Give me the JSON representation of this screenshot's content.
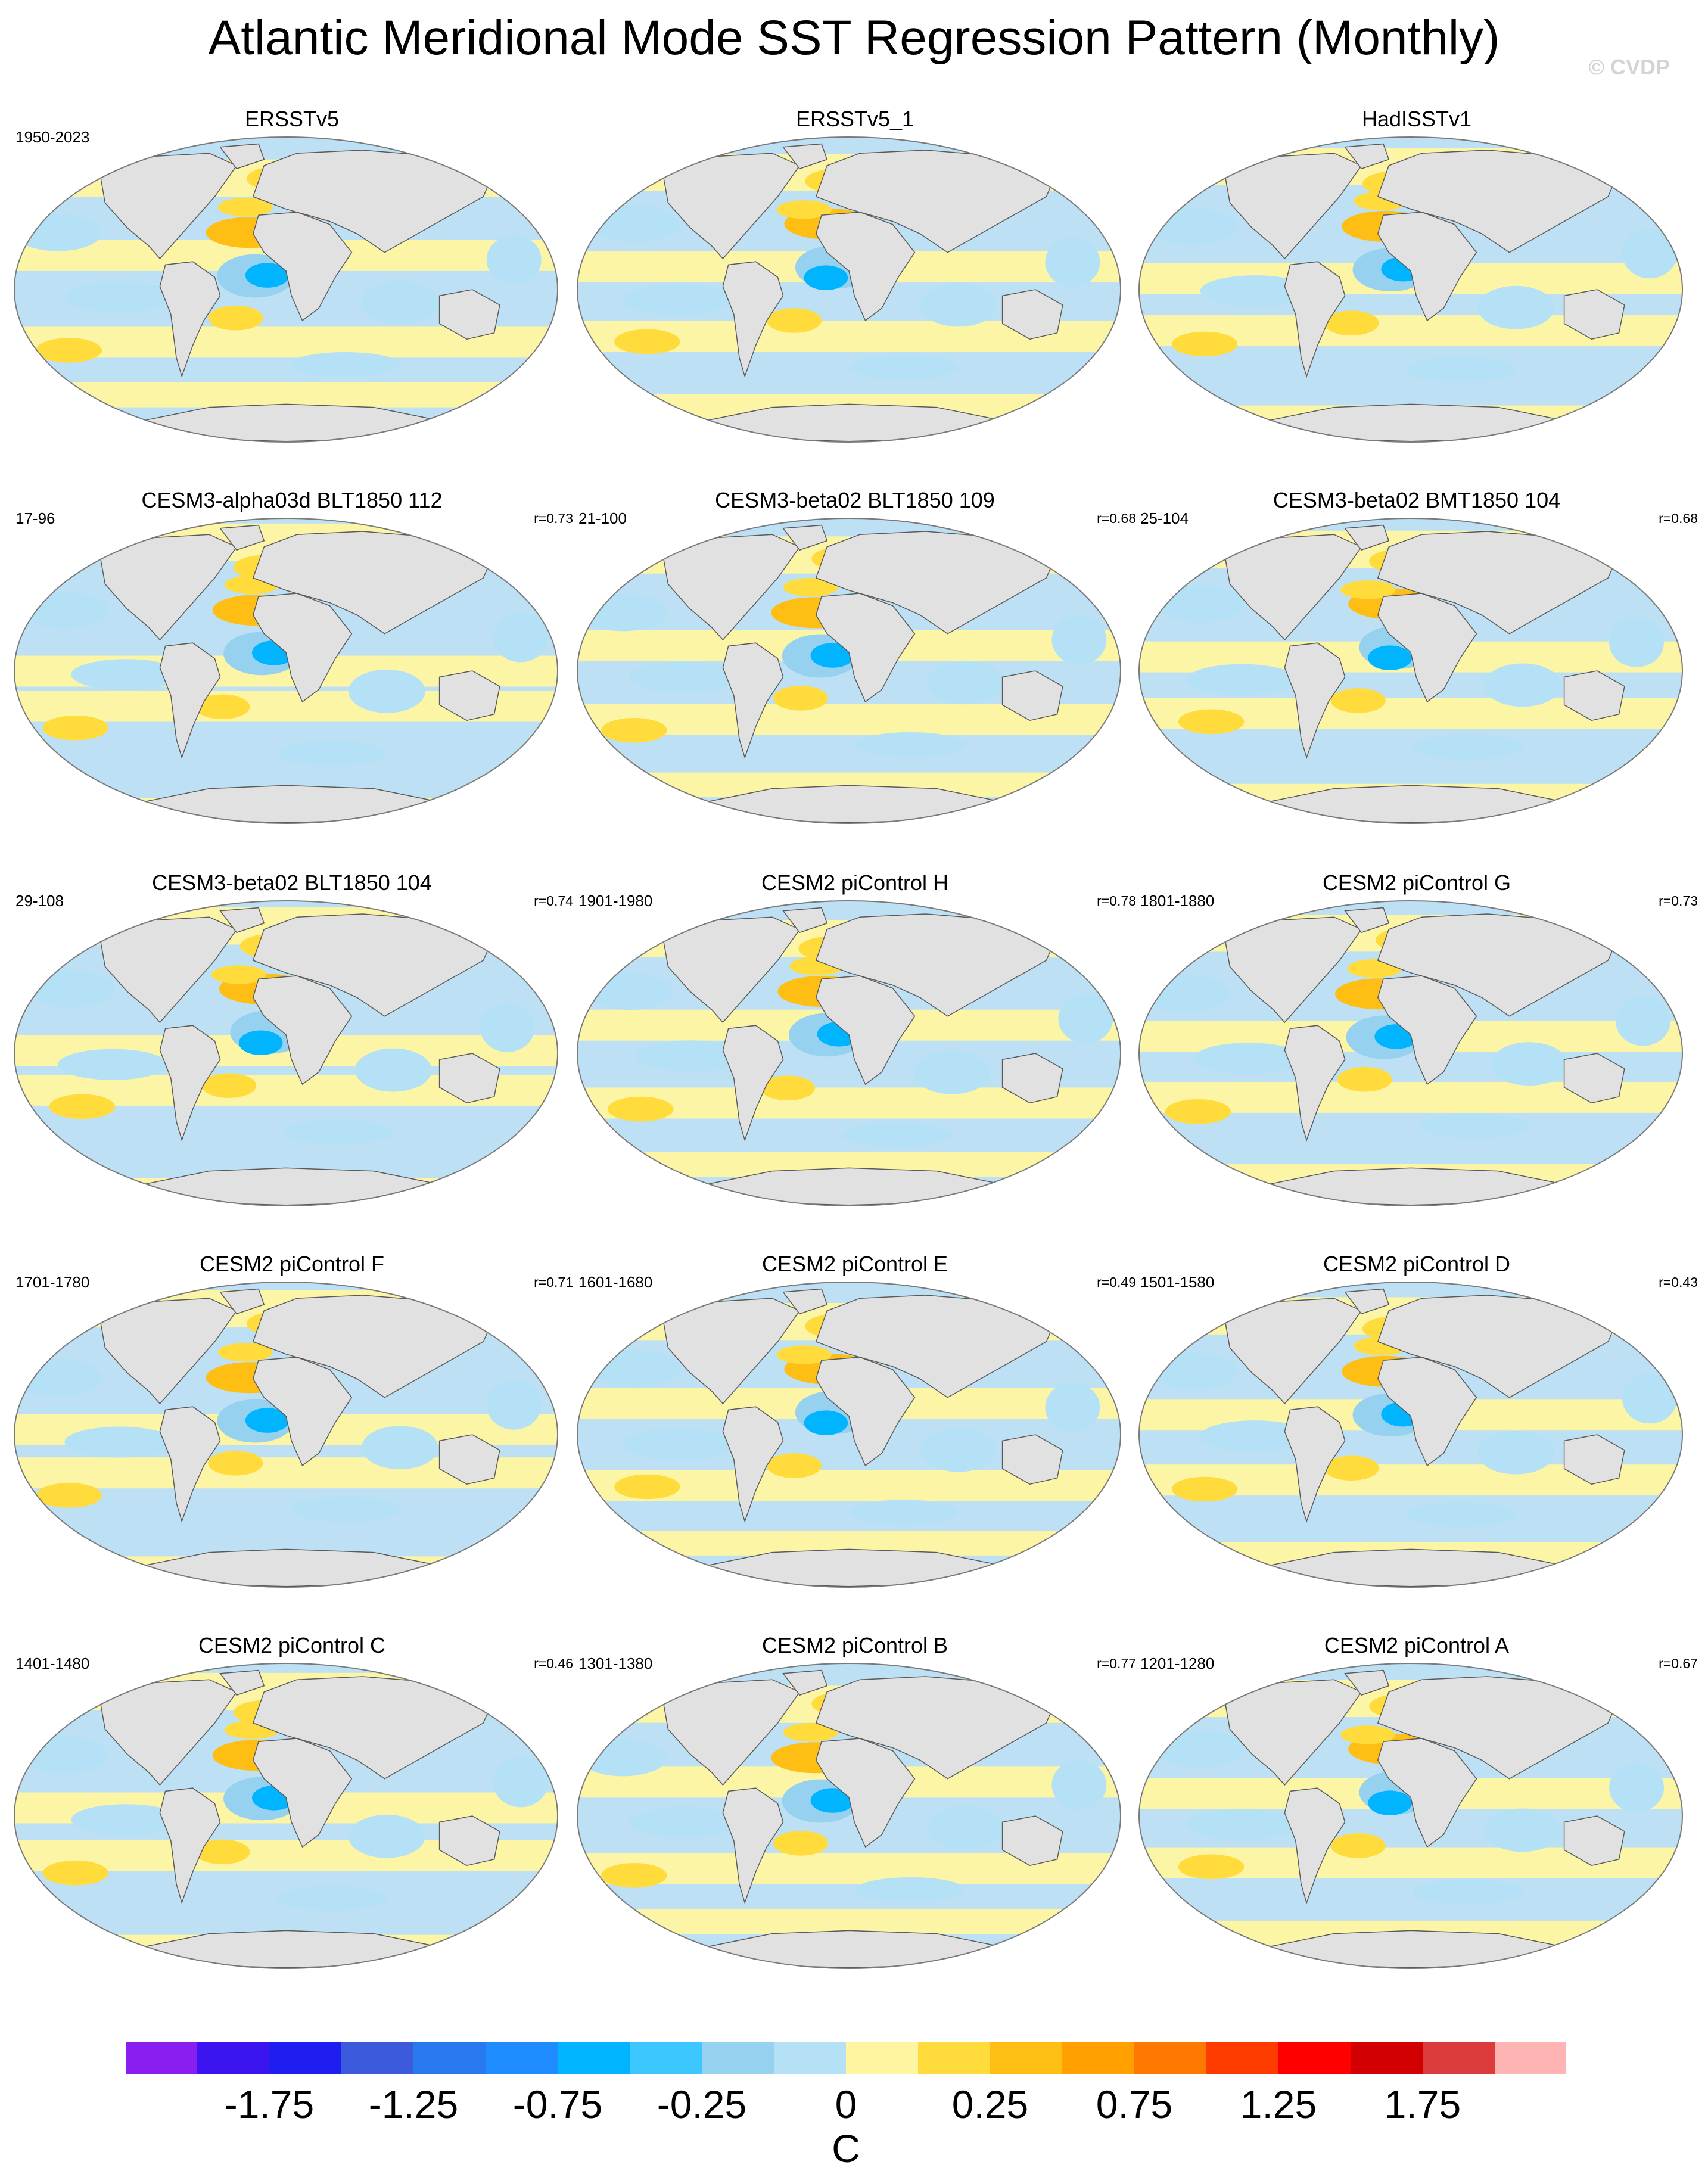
{
  "title": "Atlantic Meridional Mode SST Regression Pattern (Monthly)",
  "watermark": "© CVDP",
  "colors": {
    "land": "#e1e1e1",
    "ocean_zero_pos": "#fef7a0",
    "ocean_zero_neg": "#bde0f4",
    "coast": "#5a5a5a",
    "border": "#7a7a7a"
  },
  "panels": [
    {
      "title": "ERSSTv5",
      "years": "1950-2023",
      "corr": "",
      "icon": "world-map-icon"
    },
    {
      "title": "ERSSTv5_1",
      "years": "",
      "corr": "",
      "icon": "world-map-icon"
    },
    {
      "title": "HadISSTv1",
      "years": "",
      "corr": "",
      "icon": "world-map-icon"
    },
    {
      "title": "CESM3-alpha03d BLT1850 112",
      "years": "17-96",
      "corr": "r=0.73",
      "icon": "world-map-icon"
    },
    {
      "title": "CESM3-beta02 BLT1850 109",
      "years": "21-100",
      "corr": "r=0.68",
      "icon": "world-map-icon"
    },
    {
      "title": "CESM3-beta02 BMT1850 104",
      "years": "25-104",
      "corr": "r=0.68",
      "icon": "world-map-icon"
    },
    {
      "title": "CESM3-beta02 BLT1850 104",
      "years": "29-108",
      "corr": "r=0.74",
      "icon": "world-map-icon"
    },
    {
      "title": "CESM2 piControl H",
      "years": "1901-1980",
      "corr": "r=0.78",
      "icon": "world-map-icon"
    },
    {
      "title": "CESM2 piControl G",
      "years": "1801-1880",
      "corr": "r=0.73",
      "icon": "world-map-icon"
    },
    {
      "title": "CESM2 piControl F",
      "years": "1701-1780",
      "corr": "r=0.71",
      "icon": "world-map-icon"
    },
    {
      "title": "CESM2 piControl E",
      "years": "1601-1680",
      "corr": "r=0.49",
      "icon": "world-map-icon"
    },
    {
      "title": "CESM2 piControl D",
      "years": "1501-1580",
      "corr": "r=0.43",
      "icon": "world-map-icon"
    },
    {
      "title": "CESM2 piControl C",
      "years": "1401-1480",
      "corr": "r=0.46",
      "icon": "world-map-icon"
    },
    {
      "title": "CESM2 piControl B",
      "years": "1301-1380",
      "corr": "r=0.77",
      "icon": "world-map-icon"
    },
    {
      "title": "CESM2 piControl A",
      "years": "1201-1280",
      "corr": "r=0.67",
      "icon": "world-map-icon"
    }
  ],
  "colorbar": {
    "unit": "C",
    "colors": [
      "#8a1ef0",
      "#3c14f0",
      "#1e1ef0",
      "#3c5adc",
      "#2878f0",
      "#1e8cff",
      "#00b4ff",
      "#3cc8ff",
      "#96d2f0",
      "#b4e1f5",
      "#fff5a0",
      "#ffdc3c",
      "#ffbe14",
      "#ffa000",
      "#ff7800",
      "#ff3c00",
      "#ff0000",
      "#d20000",
      "#dc3c3c",
      "#ffb4b4"
    ],
    "labels": [
      {
        "text": "-1.75",
        "boundary": 2
      },
      {
        "text": "-1.25",
        "boundary": 4
      },
      {
        "text": "-0.75",
        "boundary": 6
      },
      {
        "text": "-0.25",
        "boundary": 8
      },
      {
        "text": "0",
        "boundary": 10
      },
      {
        "text": "0.25",
        "boundary": 12
      },
      {
        "text": "0.75",
        "boundary": 14
      },
      {
        "text": "1.25",
        "boundary": 16
      },
      {
        "text": "1.75",
        "boundary": 18
      }
    ]
  }
}
